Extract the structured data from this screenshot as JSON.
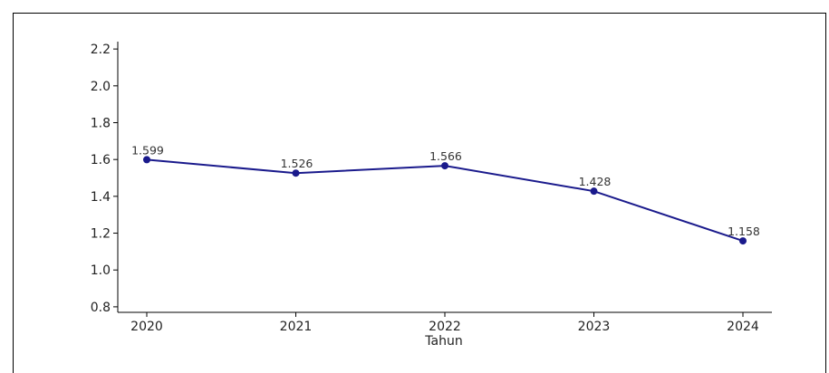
{
  "chart_data": {
    "type": "line",
    "title": "",
    "xlabel": "Tahun",
    "ylabel": "",
    "categories": [
      "2020",
      "2021",
      "2022",
      "2023",
      "2024"
    ],
    "series": [
      {
        "values": [
          1.599,
          1.526,
          1.566,
          1.428,
          1.158
        ],
        "color": "#1a1a8c"
      }
    ],
    "data_labels": [
      "1.599",
      "1.526",
      "1.566",
      "1.428",
      "1.158"
    ],
    "ylim": [
      0.77,
      2.24
    ],
    "yticks": [
      0.8,
      1.0,
      1.2,
      1.4,
      1.6,
      1.8,
      2.0,
      2.2
    ],
    "ytick_labels": [
      "0.8",
      "1.0",
      "1.2",
      "1.4",
      "1.6",
      "1.8",
      "2.0",
      "2.2"
    ],
    "grid": false,
    "legend": "none"
  }
}
